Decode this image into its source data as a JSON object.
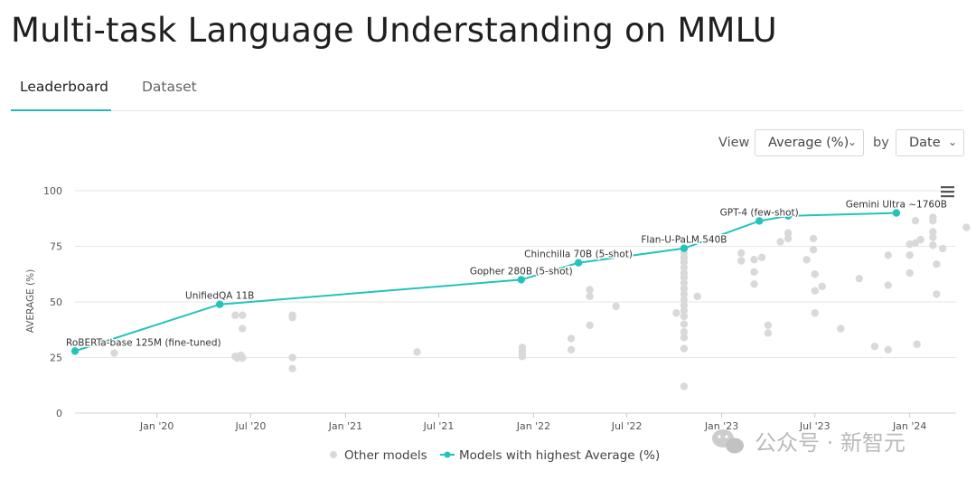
{
  "page_title": "Multi-task Language Understanding on MMLU",
  "tabs": [
    {
      "label": "Leaderboard",
      "active": true
    },
    {
      "label": "Dataset",
      "active": false
    }
  ],
  "controls": {
    "view_label": "View",
    "metric_value": "Average (%)",
    "by_label": "by",
    "group_value": "Date"
  },
  "menu_icon": "hamburger-menu-icon",
  "watermark": "公众号 · 新智元",
  "watermark_icon": "wechat-icon",
  "chart_data": {
    "type": "scatter",
    "ylabel": "AVERAGE (%)",
    "ylim": [
      0,
      100
    ],
    "yticks": [
      0,
      25,
      50,
      75,
      100
    ],
    "xlim": [
      "2019-07-26",
      "2024-03-31"
    ],
    "xticks": [
      {
        "label": "Jan '20",
        "date": "2020-01-01"
      },
      {
        "label": "Jul '20",
        "date": "2020-07-01"
      },
      {
        "label": "Jan '21",
        "date": "2021-01-01"
      },
      {
        "label": "Jul '21",
        "date": "2021-07-01"
      },
      {
        "label": "Jan '22",
        "date": "2022-01-01"
      },
      {
        "label": "Jul '22",
        "date": "2022-07-01"
      },
      {
        "label": "Jan '23",
        "date": "2023-01-01"
      },
      {
        "label": "Jul '23",
        "date": "2023-07-01"
      },
      {
        "label": "Jan '24",
        "date": "2024-01-01"
      }
    ],
    "legend_position": "bottom-center",
    "grid": true,
    "colors": {
      "sota": "#21c4bb",
      "other": "#d9d9d9",
      "grid": "#e6e6e6"
    },
    "sota_series": {
      "name": "Models with highest Average (%)",
      "points": [
        {
          "date": "2019-07-26",
          "value": 27.9,
          "label": "RoBERTa-base 125M (fine-tuned)"
        },
        {
          "date": "2020-05-02",
          "value": 48.9,
          "label": "UnifiedQA 11B"
        },
        {
          "date": "2021-12-08",
          "value": 60.0,
          "label": "Gopher 280B (5-shot)"
        },
        {
          "date": "2022-03-29",
          "value": 67.6,
          "label": "Chinchilla 70B (5-shot)"
        },
        {
          "date": "2022-10-20",
          "value": 74.1,
          "label": "Flan-U-PaLM 540B"
        },
        {
          "date": "2023-03-15",
          "value": 86.4,
          "label": "GPT-4 (few-shot)"
        },
        {
          "date": "2023-05-10",
          "value": 88.7,
          "label": ""
        },
        {
          "date": "2023-12-06",
          "value": 90.0,
          "label": "Gemini Ultra ~1760B"
        }
      ]
    },
    "other_series": {
      "name": "Other models",
      "points": [
        {
          "date": "2019-10-10",
          "value": 27.0
        },
        {
          "date": "2020-06-01",
          "value": 44.0
        },
        {
          "date": "2020-06-15",
          "value": 44.0
        },
        {
          "date": "2020-06-15",
          "value": 38.0
        },
        {
          "date": "2020-06-01",
          "value": 25.5
        },
        {
          "date": "2020-06-05",
          "value": 24.8
        },
        {
          "date": "2020-06-12",
          "value": 26.0
        },
        {
          "date": "2020-06-15",
          "value": 24.8
        },
        {
          "date": "2020-09-20",
          "value": 44.0
        },
        {
          "date": "2020-09-20",
          "value": 43.0
        },
        {
          "date": "2020-09-20",
          "value": 25.0
        },
        {
          "date": "2020-09-20",
          "value": 20.0
        },
        {
          "date": "2021-05-20",
          "value": 27.5
        },
        {
          "date": "2021-12-10",
          "value": 29.5
        },
        {
          "date": "2021-12-10",
          "value": 28.0
        },
        {
          "date": "2021-12-10",
          "value": 26.5
        },
        {
          "date": "2021-12-10",
          "value": 25.5
        },
        {
          "date": "2022-03-15",
          "value": 33.5
        },
        {
          "date": "2022-03-15",
          "value": 28.5
        },
        {
          "date": "2022-04-20",
          "value": 55.5
        },
        {
          "date": "2022-04-20",
          "value": 52.5
        },
        {
          "date": "2022-04-20",
          "value": 39.5
        },
        {
          "date": "2022-06-10",
          "value": 48.0
        },
        {
          "date": "2022-10-05",
          "value": 45.0
        },
        {
          "date": "2022-10-20",
          "value": 72.0
        },
        {
          "date": "2022-10-20",
          "value": 70.0
        },
        {
          "date": "2022-10-20",
          "value": 68.0
        },
        {
          "date": "2022-10-20",
          "value": 65.5
        },
        {
          "date": "2022-10-20",
          "value": 63.0
        },
        {
          "date": "2022-10-20",
          "value": 61.0
        },
        {
          "date": "2022-10-20",
          "value": 58.5
        },
        {
          "date": "2022-10-20",
          "value": 56.0
        },
        {
          "date": "2022-10-20",
          "value": 53.5
        },
        {
          "date": "2022-10-20",
          "value": 51.0
        },
        {
          "date": "2022-10-20",
          "value": 48.5
        },
        {
          "date": "2022-10-20",
          "value": 46.0
        },
        {
          "date": "2022-10-20",
          "value": 43.5
        },
        {
          "date": "2022-10-20",
          "value": 40.0
        },
        {
          "date": "2022-10-20",
          "value": 36.5
        },
        {
          "date": "2022-10-20",
          "value": 34.0
        },
        {
          "date": "2022-10-20",
          "value": 29.0
        },
        {
          "date": "2022-10-20",
          "value": 12.0
        },
        {
          "date": "2022-11-15",
          "value": 52.5
        },
        {
          "date": "2023-02-08",
          "value": 72.0
        },
        {
          "date": "2023-02-08",
          "value": 68.5
        },
        {
          "date": "2023-03-05",
          "value": 69.0
        },
        {
          "date": "2023-03-05",
          "value": 63.5
        },
        {
          "date": "2023-03-05",
          "value": 58.0
        },
        {
          "date": "2023-03-20",
          "value": 70.0
        },
        {
          "date": "2023-04-01",
          "value": 39.5
        },
        {
          "date": "2023-04-01",
          "value": 36.0
        },
        {
          "date": "2023-04-25",
          "value": 77.0
        },
        {
          "date": "2023-05-10",
          "value": 81.0
        },
        {
          "date": "2023-05-10",
          "value": 78.5
        },
        {
          "date": "2023-06-15",
          "value": 69.0
        },
        {
          "date": "2023-06-28",
          "value": 78.5
        },
        {
          "date": "2023-06-28",
          "value": 73.5
        },
        {
          "date": "2023-07-01",
          "value": 62.5
        },
        {
          "date": "2023-07-01",
          "value": 55.0
        },
        {
          "date": "2023-07-01",
          "value": 45.0
        },
        {
          "date": "2023-07-15",
          "value": 57.0
        },
        {
          "date": "2023-08-20",
          "value": 38.0
        },
        {
          "date": "2023-09-25",
          "value": 60.5
        },
        {
          "date": "2023-10-25",
          "value": 30.0
        },
        {
          "date": "2023-11-20",
          "value": 71.0
        },
        {
          "date": "2023-11-20",
          "value": 57.5
        },
        {
          "date": "2023-11-20",
          "value": 28.5
        },
        {
          "date": "2024-01-01",
          "value": 76.0
        },
        {
          "date": "2024-01-01",
          "value": 71.0
        },
        {
          "date": "2024-01-01",
          "value": 63.0
        },
        {
          "date": "2024-01-12",
          "value": 86.5
        },
        {
          "date": "2024-01-12",
          "value": 76.5
        },
        {
          "date": "2024-01-15",
          "value": 31.0
        },
        {
          "date": "2024-01-22",
          "value": 78.0
        },
        {
          "date": "2024-02-15",
          "value": 88.0
        },
        {
          "date": "2024-02-15",
          "value": 86.5
        },
        {
          "date": "2024-02-15",
          "value": 81.5
        },
        {
          "date": "2024-02-15",
          "value": 79.0
        },
        {
          "date": "2024-02-15",
          "value": 75.5
        },
        {
          "date": "2024-02-22",
          "value": 67.0
        },
        {
          "date": "2024-02-22",
          "value": 53.5
        },
        {
          "date": "2024-03-05",
          "value": 74.0
        },
        {
          "date": "2024-04-20",
          "value": 83.5
        }
      ]
    }
  }
}
